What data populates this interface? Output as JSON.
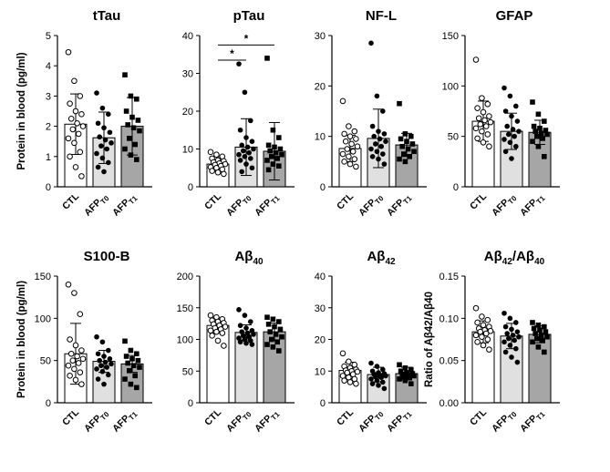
{
  "figure": {
    "ylabel_left": "Protein in blood (pg/ml)",
    "ylabel_ratio": "Ratio of Aβ42/Aβ40",
    "categories": [
      "CTL",
      "AFPT0",
      "AFPT1"
    ],
    "category_labels": [
      {
        "main": "CTL",
        "sub": ""
      },
      {
        "main": "AFP",
        "sub": "T0"
      },
      {
        "main": "AFP",
        "sub": "T1"
      }
    ],
    "colors": {
      "CTL": "#ffffff",
      "AFPT0": "#e0e0e0",
      "AFPT1": "#a6a6a6",
      "axis": "#000000"
    }
  },
  "chart_data": [
    {
      "type": "bar",
      "title": "tTau",
      "title_main": "tTau",
      "title_sub": "",
      "ylabel": "Protein in blood (pg/ml)",
      "ylim": [
        0,
        5
      ],
      "yticks": [
        0,
        1,
        2,
        3,
        4,
        5
      ],
      "ytick_labels": [
        "0",
        "1",
        "2",
        "3",
        "4",
        "5"
      ],
      "categories": [
        "CTL",
        "AFPT0",
        "AFPT1"
      ],
      "values": [
        2.07,
        1.62,
        2.0
      ],
      "errors": [
        1.0,
        0.85,
        0.95
      ],
      "points": [
        [
          4.45,
          3.5,
          3.0,
          2.75,
          2.5,
          2.4,
          2.25,
          2.1,
          2.0,
          1.9,
          1.75,
          1.6,
          1.45,
          1.15,
          1.0,
          0.65,
          0.35
        ],
        [
          3.1,
          2.6,
          2.4,
          2.1,
          1.95,
          1.8,
          1.65,
          1.55,
          1.45,
          1.35,
          1.25,
          1.1,
          0.95,
          0.8,
          0.65,
          0.5
        ],
        [
          3.7,
          3.0,
          2.9,
          2.5,
          2.3,
          2.2,
          2.05,
          1.95,
          1.85,
          1.6,
          1.4,
          1.25,
          1.05,
          0.9
        ]
      ],
      "significance": []
    },
    {
      "type": "bar",
      "title": "pTau",
      "title_main": "pTau",
      "title_sub": "",
      "ylabel": "",
      "ylim": [
        0,
        40
      ],
      "yticks": [
        0,
        10,
        20,
        30,
        40
      ],
      "ytick_labels": [
        "0",
        "10",
        "20",
        "30",
        "40"
      ],
      "categories": [
        "CTL",
        "AFPT0",
        "AFPT1"
      ],
      "values": [
        6.0,
        10.5,
        9.4
      ],
      "errors": [
        2.0,
        7.5,
        7.6
      ],
      "points": [
        [
          9.2,
          8.5,
          8.0,
          7.5,
          7.0,
          6.8,
          6.5,
          6.2,
          6.0,
          5.8,
          5.5,
          5.2,
          5.0,
          4.6,
          4.2,
          3.8,
          3.4
        ],
        [
          32.5,
          25.0,
          17.5,
          15.0,
          13.0,
          12.0,
          11.0,
          10.5,
          10.0,
          9.5,
          9.0,
          8.5,
          8.0,
          7.5,
          7.0,
          6.0,
          5.0,
          4.0
        ],
        [
          34.0,
          15.0,
          13.0,
          11.0,
          10.5,
          10.0,
          9.5,
          9.0,
          8.5,
          8.0,
          7.5,
          7.0,
          6.0,
          5.5,
          4.5
        ]
      ],
      "significance": [
        {
          "from": 0,
          "to": 2,
          "y": 37.5,
          "label": "*"
        },
        {
          "from": 0,
          "to": 1,
          "y": 33.5,
          "label": "*"
        }
      ]
    },
    {
      "type": "bar",
      "title": "NF-L",
      "title_main": "NF-L",
      "title_sub": "",
      "ylabel": "",
      "ylim": [
        0,
        30
      ],
      "yticks": [
        0,
        10,
        20,
        30
      ],
      "ytick_labels": [
        "0",
        "10",
        "20",
        "30"
      ],
      "categories": [
        "CTL",
        "AFPT0",
        "AFPT1"
      ],
      "values": [
        7.6,
        9.6,
        8.3
      ],
      "errors": [
        2.6,
        5.8,
        2.3
      ],
      "points": [
        [
          17.0,
          12.0,
          11.0,
          10.5,
          10.0,
          9.5,
          9.0,
          8.5,
          8.0,
          7.5,
          7.0,
          6.5,
          6.0,
          5.5,
          5.0,
          4.5,
          4.0
        ],
        [
          28.5,
          18.0,
          15.0,
          12.0,
          11.0,
          10.5,
          10.0,
          9.5,
          9.0,
          8.5,
          8.0,
          7.5,
          7.0,
          6.5,
          6.0,
          5.5,
          4.5
        ],
        [
          16.5,
          10.5,
          10.0,
          9.5,
          9.0,
          8.5,
          8.0,
          7.5,
          7.0,
          6.5,
          6.0,
          5.5,
          5.0
        ]
      ],
      "significance": []
    },
    {
      "type": "bar",
      "title": "GFAP",
      "title_main": "GFAP",
      "title_sub": "",
      "ylabel": "",
      "ylim": [
        0,
        150
      ],
      "yticks": [
        0,
        50,
        100,
        150
      ],
      "ytick_labels": [
        "0",
        "50",
        "100",
        "150"
      ],
      "categories": [
        "CTL",
        "AFPT0",
        "AFPT1"
      ],
      "values": [
        65,
        55,
        54
      ],
      "errors": [
        20,
        18,
        12
      ],
      "points": [
        [
          126,
          88,
          82,
          78,
          74,
          70,
          68,
          66,
          64,
          62,
          60,
          58,
          55,
          52,
          48,
          44,
          40
        ],
        [
          98,
          90,
          80,
          75,
          70,
          65,
          60,
          57,
          55,
          52,
          50,
          47,
          44,
          40,
          35,
          28
        ],
        [
          84,
          72,
          65,
          60,
          58,
          56,
          55,
          53,
          52,
          50,
          48,
          45,
          40,
          30
        ]
      ],
      "significance": []
    },
    {
      "type": "bar",
      "title": "S100-B",
      "title_main": "S100-B",
      "title_sub": "",
      "ylabel": "Protein in blood (pg/ml)",
      "ylim": [
        0,
        150
      ],
      "yticks": [
        0,
        50,
        100,
        150
      ],
      "ytick_labels": [
        "0",
        "50",
        "100",
        "150"
      ],
      "categories": [
        "CTL",
        "AFPT0",
        "AFPT1"
      ],
      "values": [
        58,
        49,
        46
      ],
      "errors": [
        36,
        13,
        10
      ],
      "points": [
        [
          140,
          130,
          105,
          75,
          68,
          62,
          58,
          55,
          52,
          50,
          47,
          44,
          40,
          36,
          32,
          27,
          22
        ],
        [
          78,
          72,
          62,
          58,
          55,
          52,
          50,
          48,
          46,
          44,
          42,
          40,
          37,
          33,
          28,
          22
        ],
        [
          73,
          62,
          58,
          55,
          52,
          50,
          47,
          44,
          42,
          38,
          32,
          28,
          22,
          18
        ]
      ],
      "significance": []
    },
    {
      "type": "bar",
      "title": "Aβ40",
      "title_main": "Aβ",
      "title_sub": "40",
      "ylabel": "",
      "ylim": [
        0,
        200
      ],
      "yticks": [
        0,
        50,
        100,
        150,
        200
      ],
      "ytick_labels": [
        "0",
        "50",
        "100",
        "150",
        "200"
      ],
      "categories": [
        "CTL",
        "AFPT0",
        "AFPT1"
      ],
      "values": [
        122,
        111,
        112
      ],
      "errors": [
        12,
        12,
        14
      ],
      "points": [
        [
          138,
          135,
          132,
          130,
          128,
          126,
          124,
          122,
          120,
          118,
          116,
          114,
          112,
          110,
          106,
          98,
          90
        ],
        [
          147,
          138,
          128,
          122,
          118,
          114,
          112,
          110,
          108,
          106,
          104,
          102,
          100,
          98,
          96,
          94,
          92
        ],
        [
          135,
          132,
          128,
          124,
          120,
          116,
          112,
          108,
          104,
          100,
          96,
          92,
          88,
          82
        ]
      ],
      "significance": []
    },
    {
      "type": "bar",
      "title": "Aβ42",
      "title_main": "Aβ",
      "title_sub": "42",
      "ylabel": "",
      "ylim": [
        0,
        40
      ],
      "yticks": [
        0,
        10,
        20,
        30,
        40
      ],
      "ytick_labels": [
        "0",
        "10",
        "20",
        "30",
        "40"
      ],
      "categories": [
        "CTL",
        "AFPT0",
        "AFPT1"
      ],
      "values": [
        10.2,
        8.9,
        9.2
      ],
      "errors": [
        2.6,
        2.3,
        2.0
      ],
      "points": [
        [
          15.6,
          13.0,
          12.0,
          11.5,
          11.0,
          10.5,
          10.2,
          10.0,
          9.8,
          9.5,
          9.0,
          8.5,
          8.0,
          7.5,
          7.0,
          6.5,
          6.0
        ],
        [
          12.5,
          11.5,
          10.5,
          10.0,
          9.5,
          9.2,
          9.0,
          8.8,
          8.5,
          8.2,
          8.0,
          7.5,
          7.0,
          6.5,
          6.0,
          5.5,
          4.5
        ],
        [
          12.0,
          11.0,
          10.5,
          10.0,
          9.5,
          9.2,
          9.0,
          8.8,
          8.5,
          8.2,
          8.0,
          7.5,
          7.0,
          6.0
        ]
      ],
      "significance": []
    },
    {
      "type": "bar",
      "title": "Aβ42/Aβ40",
      "title_main": "Aβ",
      "title_sub": "42",
      "title_main2": "/Aβ",
      "title_sub2": "40",
      "ylabel": "Ratio of Aβ42/Aβ40",
      "ylim": [
        0,
        0.15
      ],
      "yticks": [
        0,
        0.05,
        0.1,
        0.15
      ],
      "ytick_labels": [
        "0.00",
        "0.05",
        "0.10",
        "0.15"
      ],
      "categories": [
        "CTL",
        "AFPT0",
        "AFPT1"
      ],
      "values": [
        0.084,
        0.079,
        0.081
      ],
      "errors": [
        0.013,
        0.015,
        0.01
      ],
      "points": [
        [
          0.112,
          0.102,
          0.098,
          0.095,
          0.092,
          0.09,
          0.088,
          0.086,
          0.085,
          0.084,
          0.082,
          0.08,
          0.078,
          0.075,
          0.072,
          0.068,
          0.063
        ],
        [
          0.106,
          0.1,
          0.095,
          0.09,
          0.087,
          0.084,
          0.082,
          0.08,
          0.078,
          0.076,
          0.074,
          0.072,
          0.068,
          0.064,
          0.06,
          0.054,
          0.048
        ],
        [
          0.095,
          0.092,
          0.09,
          0.088,
          0.086,
          0.084,
          0.082,
          0.08,
          0.078,
          0.076,
          0.074,
          0.072,
          0.066,
          0.06
        ]
      ],
      "significance": []
    }
  ]
}
